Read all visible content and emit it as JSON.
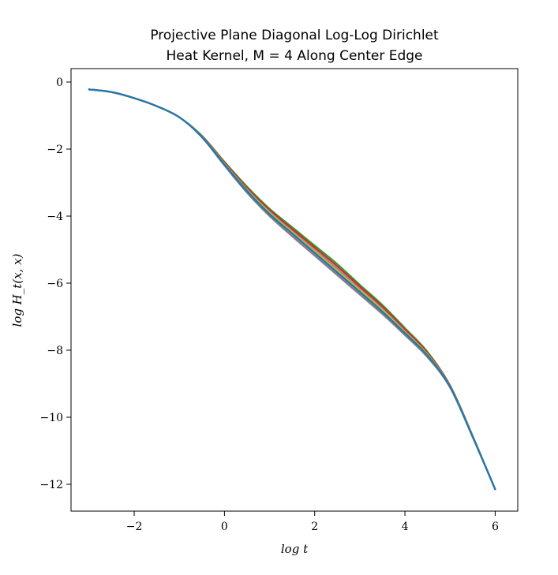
{
  "chart_data": {
    "type": "line",
    "title_lines": [
      "Projective Plane Diagonal Log-Log Dirichlet",
      "Heat Kernel, M = 4 Along Center Edge"
    ],
    "xlabel": "log t",
    "ylabel": "log H_t(x, x)",
    "xlim": [
      -3.4,
      6.5
    ],
    "ylim": [
      -12.8,
      0.4
    ],
    "xticks": [
      -2,
      0,
      2,
      4,
      6
    ],
    "yticks": [
      0,
      -2,
      -4,
      -6,
      -8,
      -10,
      -12
    ],
    "xtick_labels": [
      "−2",
      "0",
      "2",
      "4",
      "6"
    ],
    "ytick_labels": [
      "0",
      "−2",
      "−4",
      "−6",
      "−8",
      "−10",
      "−12"
    ],
    "grid": false,
    "legend": "none",
    "x": [
      -3.0,
      -2.5,
      -2.0,
      -1.5,
      -1.0,
      -0.5,
      0.0,
      0.5,
      1.0,
      1.5,
      2.0,
      2.5,
      3.0,
      3.5,
      4.0,
      4.5,
      5.0,
      5.5,
      6.0
    ],
    "series": [
      {
        "color": "#2ca02c",
        "values": [
          -0.22,
          -0.3,
          -0.48,
          -0.72,
          -1.05,
          -1.6,
          -2.38,
          -3.12,
          -3.78,
          -4.33,
          -4.88,
          -5.43,
          -6.05,
          -6.65,
          -7.34,
          -8.05,
          -9.05,
          -10.55,
          -12.15
        ]
      },
      {
        "color": "#d62728",
        "values": [
          -0.22,
          -0.3,
          -0.48,
          -0.72,
          -1.05,
          -1.61,
          -2.4,
          -3.16,
          -3.82,
          -4.38,
          -4.94,
          -5.5,
          -6.1,
          -6.7,
          -7.38,
          -8.08,
          -9.06,
          -10.56,
          -12.15
        ]
      },
      {
        "color": "#9467bd",
        "values": [
          -0.22,
          -0.3,
          -0.48,
          -0.72,
          -1.05,
          -1.62,
          -2.43,
          -3.2,
          -3.87,
          -4.44,
          -5.01,
          -5.58,
          -6.17,
          -6.76,
          -7.43,
          -8.12,
          -9.08,
          -10.57,
          -12.15
        ]
      },
      {
        "color": "#8c564b",
        "values": [
          -0.22,
          -0.3,
          -0.48,
          -0.72,
          -1.05,
          -1.63,
          -2.45,
          -3.24,
          -3.92,
          -4.5,
          -5.07,
          -5.65,
          -6.23,
          -6.82,
          -7.47,
          -8.15,
          -9.09,
          -10.58,
          -12.15
        ]
      },
      {
        "color": "#e377c2",
        "values": [
          -0.22,
          -0.3,
          -0.48,
          -0.72,
          -1.05,
          -1.64,
          -2.47,
          -3.27,
          -3.96,
          -4.55,
          -5.13,
          -5.71,
          -6.29,
          -6.87,
          -7.51,
          -8.18,
          -9.1,
          -10.58,
          -12.15
        ]
      },
      {
        "color": "#7f7f7f",
        "values": [
          -0.22,
          -0.3,
          -0.48,
          -0.72,
          -1.05,
          -1.65,
          -2.49,
          -3.3,
          -4.0,
          -4.6,
          -5.18,
          -5.76,
          -6.34,
          -6.92,
          -7.55,
          -8.21,
          -9.11,
          -10.59,
          -12.15
        ]
      },
      {
        "color": "#bcbd22",
        "values": [
          -0.22,
          -0.3,
          -0.48,
          -0.72,
          -1.05,
          -1.62,
          -2.44,
          -3.22,
          -3.89,
          -4.47,
          -5.04,
          -5.62,
          -6.2,
          -6.79,
          -7.45,
          -8.13,
          -9.08,
          -10.57,
          -12.15
        ]
      },
      {
        "color": "#1f77b4",
        "values": [
          -0.22,
          -0.3,
          -0.48,
          -0.72,
          -1.05,
          -1.63,
          -2.46,
          -3.25,
          -3.94,
          -4.52,
          -5.1,
          -5.68,
          -6.26,
          -6.85,
          -7.49,
          -8.16,
          -9.09,
          -10.58,
          -12.15
        ]
      }
    ]
  }
}
